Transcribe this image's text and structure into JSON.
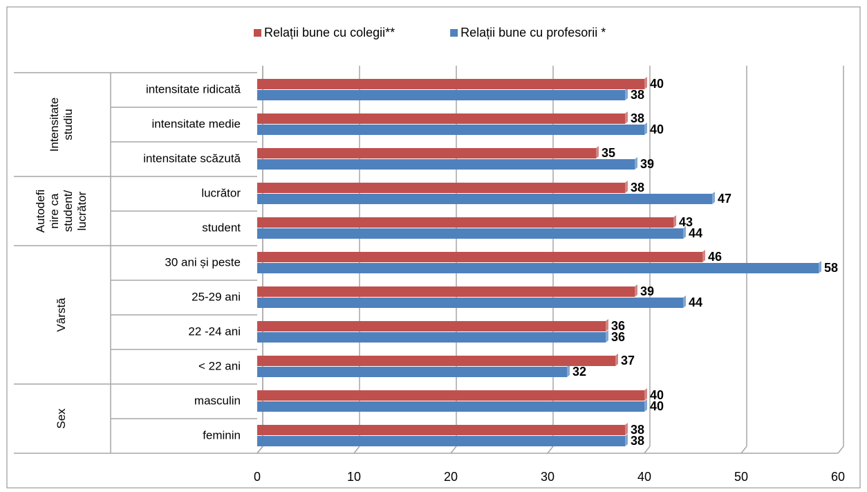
{
  "chart_data": {
    "type": "bar",
    "orientation": "horizontal",
    "groups": [
      {
        "label_lines": [
          "Intensitate",
          "studiu"
        ],
        "categories": [
          "intensitate ridicată",
          "intensitate medie",
          "intensitate scăzută"
        ]
      },
      {
        "label_lines": [
          "Autodefi",
          "nire ca",
          "student/",
          "lucrător"
        ],
        "categories": [
          "lucrător",
          "student"
        ]
      },
      {
        "label_lines": [
          "Vârstă"
        ],
        "categories": [
          "30 ani și peste",
          "25-29 ani",
          "22 -24 ani",
          "< 22 ani"
        ]
      },
      {
        "label_lines": [
          "Sex"
        ],
        "categories": [
          "masculin",
          "feminin"
        ]
      }
    ],
    "series": [
      {
        "name": "Relații bune cu colegii**",
        "color": "#c0504d",
        "values": [
          40,
          38,
          35,
          38,
          43,
          46,
          39,
          36,
          37,
          40,
          38
        ]
      },
      {
        "name": "Relații bune cu profesorii *",
        "color": "#4f81bd",
        "values": [
          38,
          40,
          39,
          47,
          44,
          58,
          44,
          36,
          32,
          40,
          38
        ]
      }
    ],
    "xlim": [
      0,
      60
    ],
    "xticks": [
      0,
      10,
      20,
      30,
      40,
      50,
      60
    ],
    "grid": true
  }
}
